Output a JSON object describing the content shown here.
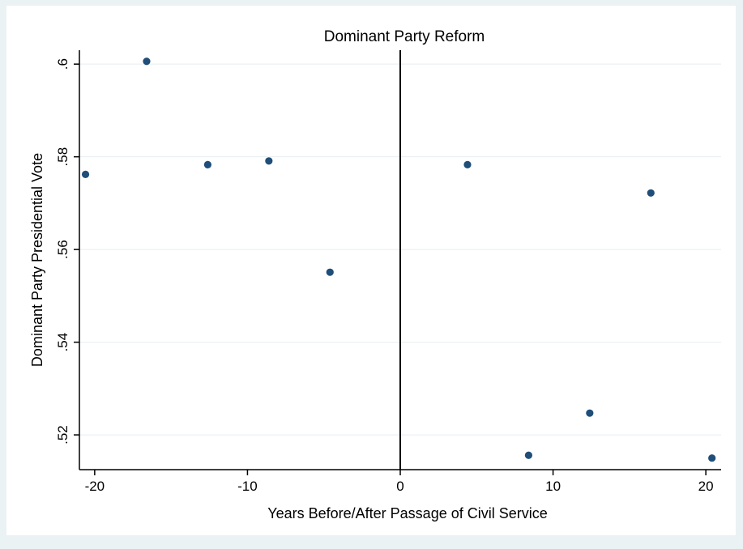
{
  "chart_data": {
    "type": "scatter",
    "title": "Dominant Party Reform",
    "xlabel": "Years Before/After Passage of Civil Service",
    "ylabel": "Dominant Party Presidential Vote",
    "xlim": [
      -21,
      21
    ],
    "ylim": [
      0.5125,
      0.603
    ],
    "x_ticks": [
      -20,
      -10,
      0,
      10,
      20
    ],
    "x_tick_labels": [
      "-20",
      "-10",
      "0",
      "10",
      "20"
    ],
    "y_ticks": [
      0.52,
      0.54,
      0.56,
      0.58,
      0.6
    ],
    "y_tick_labels": [
      ".52",
      ".54",
      ".56",
      ".58",
      ".6"
    ],
    "grid": true,
    "reference_line_x": 0,
    "marker_color": "#1f4e79",
    "points": [
      {
        "x": -20.6,
        "y": 0.5762
      },
      {
        "x": -16.6,
        "y": 0.6006
      },
      {
        "x": -12.6,
        "y": 0.5783
      },
      {
        "x": -8.6,
        "y": 0.5791
      },
      {
        "x": -4.6,
        "y": 0.5551
      },
      {
        "x": 4.4,
        "y": 0.5783
      },
      {
        "x": 8.4,
        "y": 0.5156
      },
      {
        "x": 12.4,
        "y": 0.5247
      },
      {
        "x": 16.4,
        "y": 0.5722
      },
      {
        "x": 20.4,
        "y": 0.515
      }
    ]
  },
  "colors": {
    "outer_background": "#eaf2f3",
    "plot_background": "#ffffff",
    "grid": "#e6eef0",
    "marker": "#1f4e79"
  }
}
